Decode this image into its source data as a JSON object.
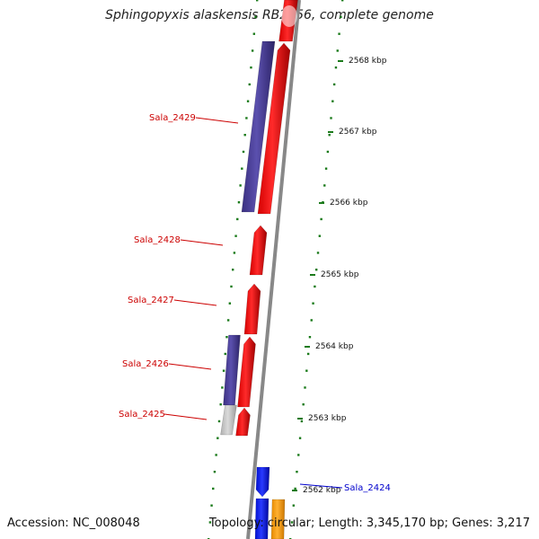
{
  "title": "Sphingopyxis alaskensis RB2256, complete genome",
  "footer": {
    "accession": "Accession: NC_008048",
    "summary": "Topology: circular; Length: 3,345,170 bp; Genes: 3,217"
  },
  "scale": {
    "ticks": [
      {
        "label": "2568 kbp"
      },
      {
        "label": "2567 kbp"
      },
      {
        "label": "2566 kbp"
      },
      {
        "label": "2565 kbp"
      },
      {
        "label": "2564 kbp"
      },
      {
        "label": "2563 kbp"
      },
      {
        "label": "2562 kbp"
      }
    ]
  },
  "genes": [
    {
      "label": "Sala_2429",
      "color": "#cc0000"
    },
    {
      "label": "Sala_2428",
      "color": "#cc0000"
    },
    {
      "label": "Sala_2427",
      "color": "#cc0000"
    },
    {
      "label": "Sala_2426",
      "color": "#cc0000"
    },
    {
      "label": "Sala_2425",
      "color": "#cc0000"
    },
    {
      "label": "Sala_2424",
      "color": "#0000cc"
    }
  ],
  "colors": {
    "forward_cds": "#ff0000",
    "reverse_cds": "#0000ff",
    "feature_blue_purple": "#4b3f99",
    "feature_gray": "#c0c0c0",
    "feature_orange": "#ff9900",
    "backbone": "#888888",
    "tick_green": "#1a7a1a"
  }
}
